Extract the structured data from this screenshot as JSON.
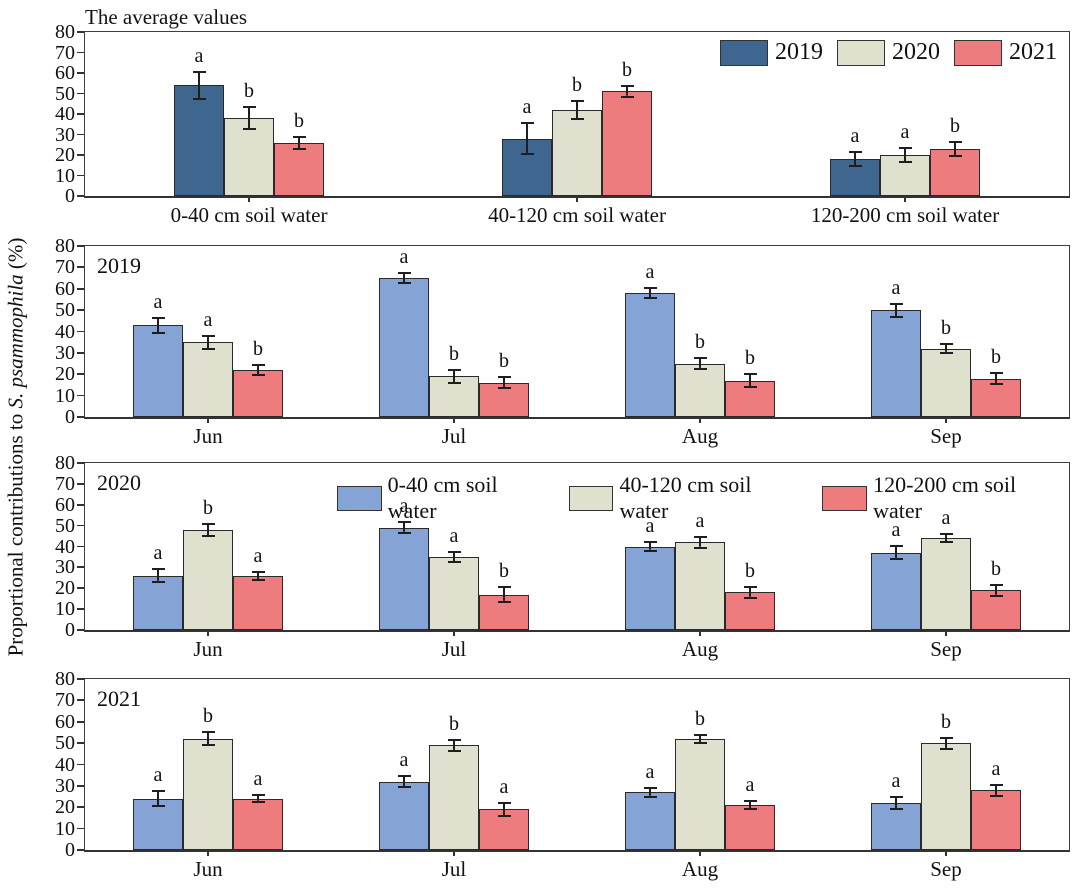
{
  "figure": {
    "ylabel_prefix": "Proportional contributions to ",
    "ylabel_italic": "S. psammophila",
    "ylabel_suffix": " (%)",
    "ylabel_full": "Proportional contributions to S. psammophila (%)"
  },
  "colors": {
    "navy_2019": "#3E668F",
    "light_blue_0_40": "#85A3D5",
    "beige": "#DFE0CE",
    "red": "#EE7B7E",
    "axis": "#333333"
  },
  "chart_data": [
    {
      "type": "bar",
      "title": "The average values",
      "categories": [
        "0-40 cm soil water",
        "40-120 cm soil water",
        "120-200 cm soil water"
      ],
      "ylim": [
        0,
        80
      ],
      "ytick_step": 10,
      "grid": false,
      "legend_position": "top-right-inside",
      "series": [
        {
          "name": "2019",
          "color": "#3E668F",
          "values": [
            54,
            28,
            18
          ],
          "errors": [
            7,
            8,
            4
          ],
          "sig_letters": [
            "a",
            "a",
            "a"
          ]
        },
        {
          "name": "2020",
          "color": "#DFE0CE",
          "values": [
            38,
            42,
            20
          ],
          "errors": [
            6,
            5,
            4
          ],
          "sig_letters": [
            "b",
            "b",
            "a"
          ]
        },
        {
          "name": "2021",
          "color": "#EE7B7E",
          "values": [
            26,
            51,
            23
          ],
          "errors": [
            3.5,
            3,
            4
          ],
          "sig_letters": [
            "b",
            "b",
            "b"
          ]
        }
      ]
    },
    {
      "type": "bar",
      "title": "2019",
      "categories": [
        "Jun",
        "Jul",
        "Aug",
        "Sep"
      ],
      "ylim": [
        0,
        80
      ],
      "ytick_step": 10,
      "grid": false,
      "legend_position": "none",
      "series": [
        {
          "name": "0-40 cm soil water",
          "color": "#85A3D5",
          "values": [
            43,
            65,
            58,
            50
          ],
          "errors": [
            4,
            3,
            3,
            3.5
          ],
          "sig_letters": [
            "a",
            "a",
            "a",
            "a"
          ]
        },
        {
          "name": "40-120 cm soil water",
          "color": "#DFE0CE",
          "values": [
            35,
            19,
            25,
            32
          ],
          "errors": [
            3.5,
            3.5,
            3,
            2.5
          ],
          "sig_letters": [
            "a",
            "b",
            "b",
            "b"
          ]
        },
        {
          "name": "120-200 cm soil water",
          "color": "#EE7B7E",
          "values": [
            22,
            16,
            17,
            18
          ],
          "errors": [
            3,
            3,
            3.5,
            3
          ],
          "sig_letters": [
            "b",
            "b",
            "b",
            "b"
          ]
        }
      ]
    },
    {
      "type": "bar",
      "title": "2020",
      "categories": [
        "Jun",
        "Jul",
        "Aug",
        "Sep"
      ],
      "ylim": [
        0,
        80
      ],
      "ytick_step": 10,
      "grid": false,
      "legend_position": "top-inside",
      "series": [
        {
          "name": "0-40 cm soil water",
          "color": "#85A3D5",
          "values": [
            26,
            49,
            40,
            37
          ],
          "errors": [
            3.5,
            3,
            2.5,
            3.5
          ],
          "sig_letters": [
            "a",
            "a",
            "a",
            "a"
          ]
        },
        {
          "name": "40-120 cm soil water",
          "color": "#DFE0CE",
          "values": [
            48,
            35,
            42,
            44
          ],
          "errors": [
            3.5,
            3,
            3,
            2.5
          ],
          "sig_letters": [
            "b",
            "a",
            "a",
            "a"
          ]
        },
        {
          "name": "120-200 cm soil water",
          "color": "#EE7B7E",
          "values": [
            26,
            17,
            18,
            19
          ],
          "errors": [
            2.5,
            4,
            3,
            3
          ],
          "sig_letters": [
            "a",
            "b",
            "b",
            "b"
          ]
        }
      ]
    },
    {
      "type": "bar",
      "title": "2021",
      "categories": [
        "Jun",
        "Jul",
        "Aug",
        "Sep"
      ],
      "ylim": [
        0,
        80
      ],
      "ytick_step": 10,
      "grid": false,
      "legend_position": "none",
      "series": [
        {
          "name": "0-40 cm soil water",
          "color": "#85A3D5",
          "values": [
            24,
            32,
            27,
            22
          ],
          "errors": [
            4,
            3,
            2.5,
            3.5
          ],
          "sig_letters": [
            "a",
            "a",
            "a",
            "a"
          ]
        },
        {
          "name": "40-120 cm soil water",
          "color": "#DFE0CE",
          "values": [
            52,
            49,
            52,
            50
          ],
          "errors": [
            3.5,
            3,
            2.5,
            3
          ],
          "sig_letters": [
            "b",
            "b",
            "b",
            "b"
          ]
        },
        {
          "name": "120-200 cm soil water",
          "color": "#EE7B7E",
          "values": [
            24,
            19,
            21,
            28
          ],
          "errors": [
            2,
            3.5,
            2.5,
            3
          ],
          "sig_letters": [
            "a",
            "a",
            "a",
            "a"
          ]
        }
      ]
    }
  ]
}
